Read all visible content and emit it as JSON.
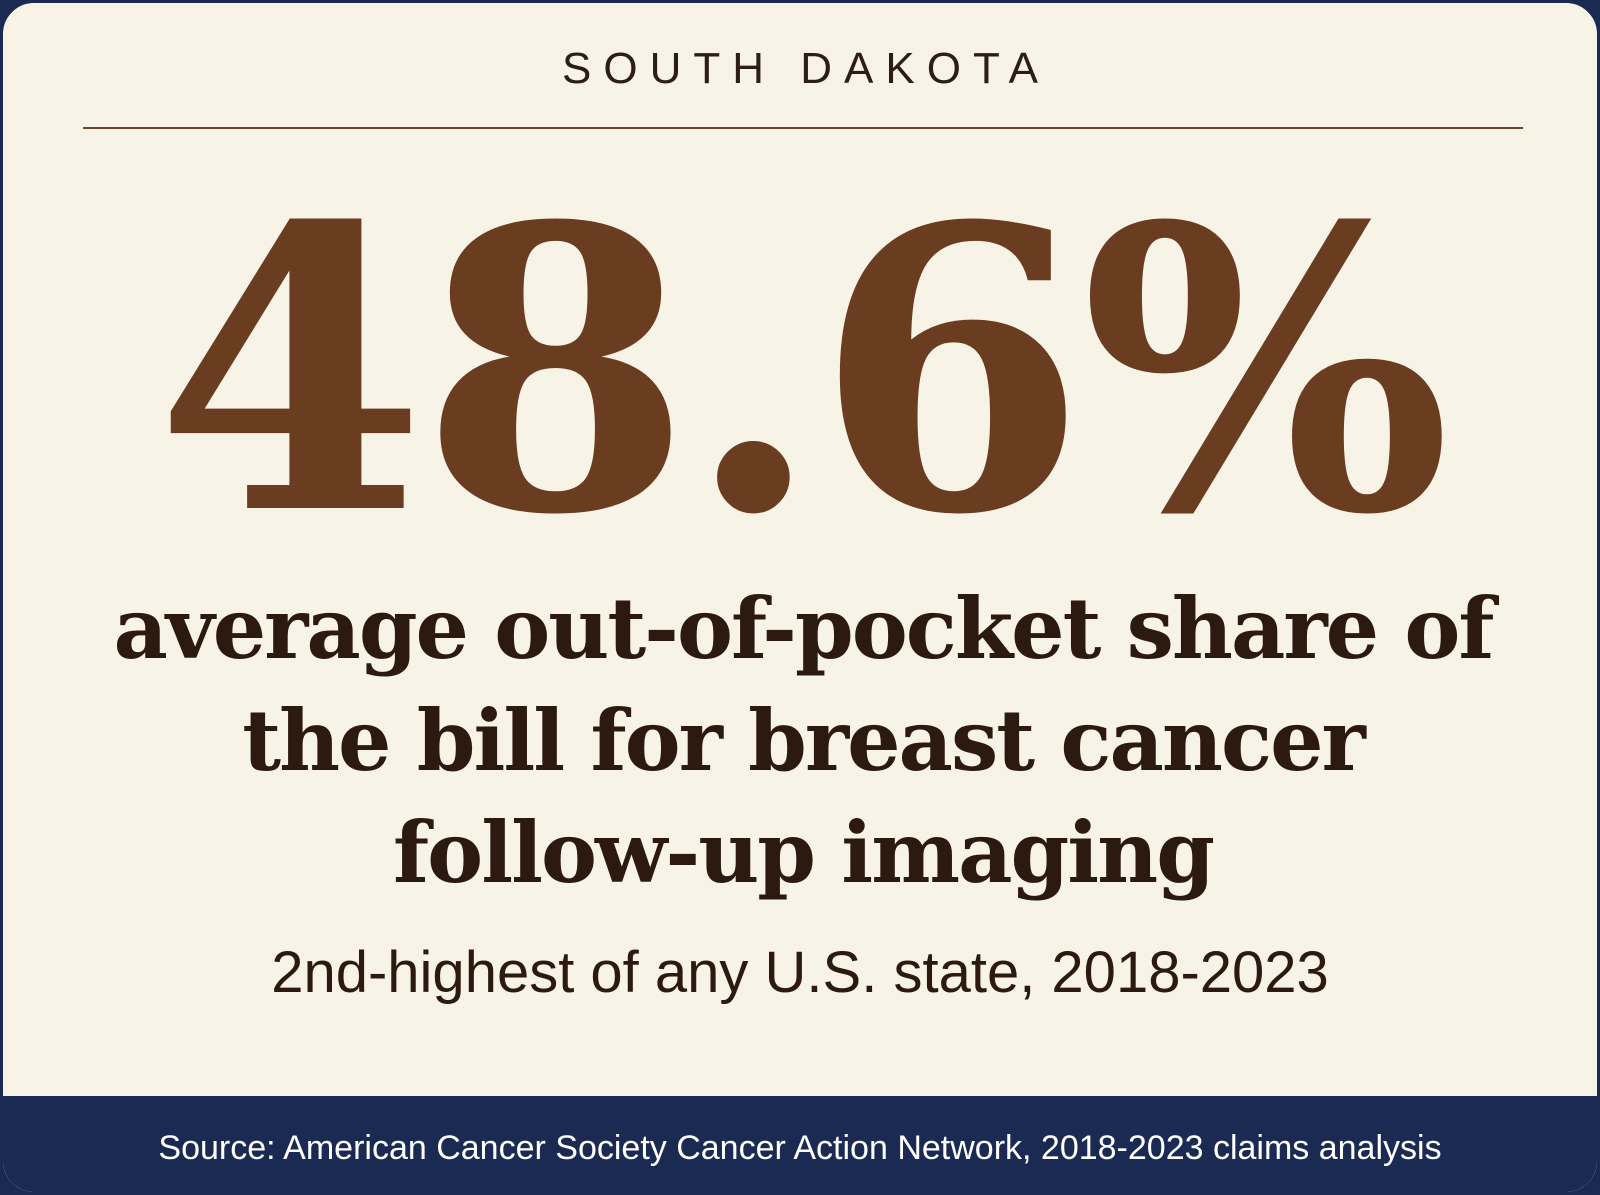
{
  "header": {
    "state": "SOUTH DAKOTA"
  },
  "stat": {
    "value": "48.6%",
    "description": "average out-of-pocket share of the bill for breast cancer follow-up imaging",
    "ranking": "2nd-highest of any U.S. state, 2018-2023"
  },
  "footer": {
    "source": "Source: American Cancer Society Cancer Action Network, 2018-2023 claims analysis"
  },
  "colors": {
    "background": "#f8f3e7",
    "accent": "#6b3d20",
    "text": "#2c1a10",
    "footer": "#1b2a52"
  }
}
